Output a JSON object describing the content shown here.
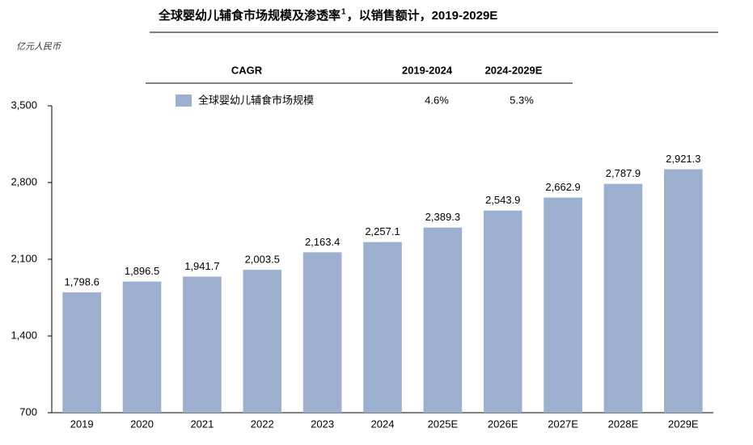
{
  "chart_data": {
    "type": "bar",
    "title": "全球婴幼儿辅食市场规模及渗透率",
    "title_footnote": "1",
    "subtitle": "，以销售额计，2019-2029E",
    "y_label": "亿元人民币",
    "categories": [
      "2019",
      "2020",
      "2021",
      "2022",
      "2023",
      "2024",
      "2025E",
      "2026E",
      "2027E",
      "2028E",
      "2029E"
    ],
    "series": [
      {
        "name": "全球婴幼儿辅食市场规模",
        "color": "#9dafcf",
        "values": [
          1798.6,
          1896.5,
          1941.7,
          2003.5,
          2163.4,
          2257.1,
          2389.3,
          2543.9,
          2662.9,
          2787.9,
          2921.3
        ],
        "value_labels": [
          "1,798.6",
          "1,896.5",
          "1,941.7",
          "2,003.5",
          "2,163.4",
          "2,257.1",
          "2,389.3",
          "2,543.9",
          "2,662.9",
          "2,787.9",
          "2,921.3"
        ]
      }
    ],
    "ylim": [
      700,
      3500
    ],
    "yticks": [
      {
        "value": 700,
        "label": "700"
      },
      {
        "value": 1400,
        "label": "1,400"
      },
      {
        "value": 2100,
        "label": "2,100"
      },
      {
        "value": 2800,
        "label": "2,800"
      },
      {
        "value": 3500,
        "label": "3,500"
      }
    ],
    "cagr_table": {
      "header": "CAGR",
      "periods": [
        "2019-2024",
        "2024-2029E"
      ],
      "values": [
        "4.6%",
        "5.3%"
      ]
    }
  }
}
